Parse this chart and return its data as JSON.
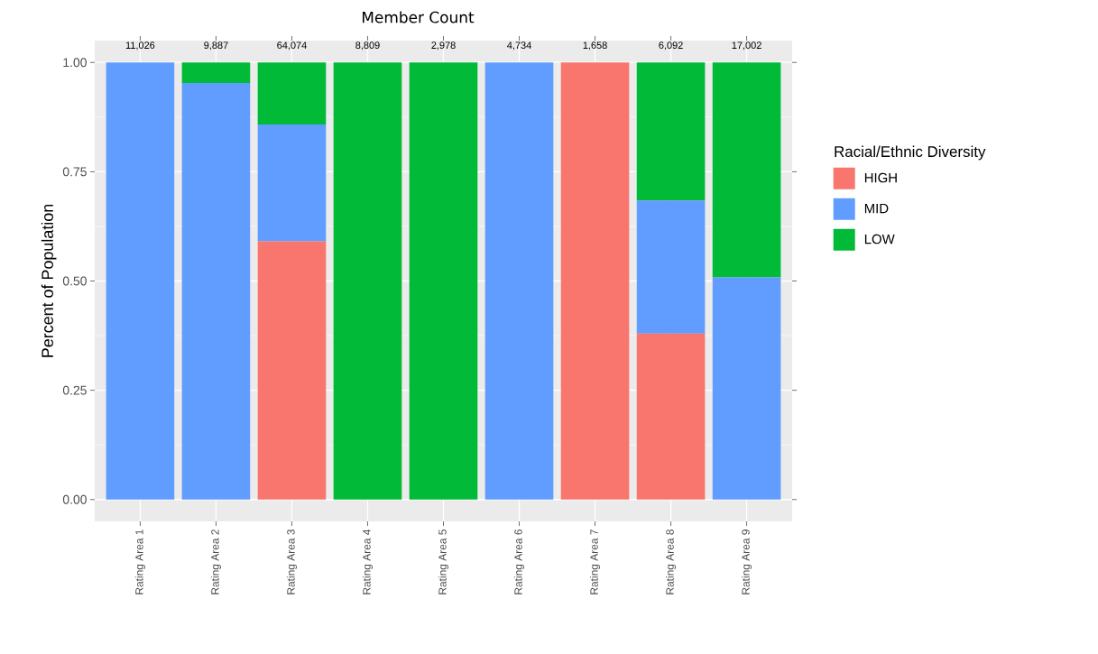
{
  "chart_data": {
    "type": "bar",
    "stacked": true,
    "ylabel": "Percent of Population",
    "legend_title": "Racial/Ethnic Diversity",
    "legend": "right",
    "categories": [
      "Rating Area 1",
      "Rating Area 2",
      "Rating Area 3",
      "Rating Area 4",
      "Rating Area 5",
      "Rating Area 6",
      "Rating Area 7",
      "Rating Area 8",
      "Rating Area 9"
    ],
    "series": [
      {
        "name": "HIGH",
        "color": "#f8766d",
        "values": [
          0,
          0,
          0.591,
          0,
          0,
          0,
          1,
          0.38,
          0
        ]
      },
      {
        "name": "MID",
        "color": "#619cff",
        "values": [
          1,
          0.953,
          0.267,
          0,
          0,
          1,
          0,
          0.304,
          0.508
        ]
      },
      {
        "name": "LOW",
        "color": "#00ba38",
        "values": [
          0,
          0.047,
          0.142,
          1,
          1,
          0,
          0,
          0.316,
          0.492
        ]
      }
    ],
    "annotations": [
      "Member Count",
      "11,026",
      "9,887",
      "64,074",
      "8,809",
      "2,978",
      "4,734",
      "1,658",
      "6,092",
      "17,002"
    ],
    "ylim": [
      -0.05,
      1.05
    ],
    "yticks": [
      {
        "value": 0,
        "label": "0.00"
      },
      {
        "value": 0.25,
        "label": "0.25"
      },
      {
        "value": 0.5,
        "label": "0.50"
      },
      {
        "value": 0.75,
        "label": "0.75"
      },
      {
        "value": 1,
        "label": "1.00"
      }
    ],
    "grid": true
  }
}
